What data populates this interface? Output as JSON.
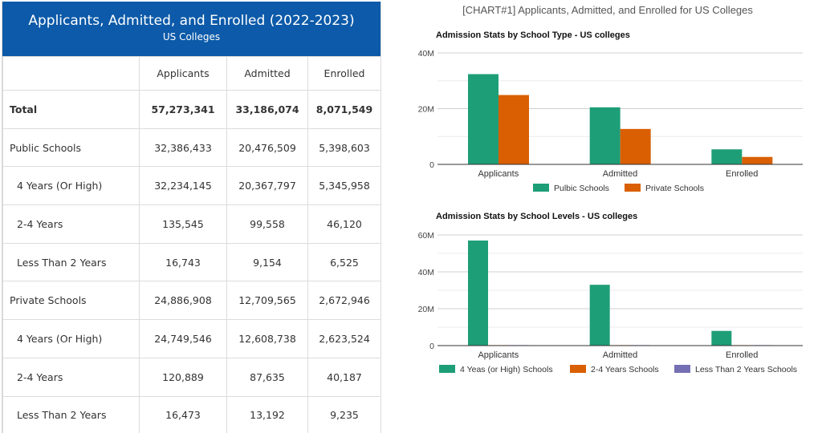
{
  "table": {
    "title": "Applicants, Admitted, and Enrolled (2022-2023)",
    "subtitle": "US Colleges",
    "columns": [
      "",
      "Applicants",
      "Admitted",
      "Enrolled"
    ],
    "rows": [
      {
        "label": "Total",
        "values": [
          "57,273,341",
          "33,186,074",
          "8,071,549"
        ],
        "bold": true,
        "indent": false
      },
      {
        "label": "Public Schools",
        "values": [
          "32,386,433",
          "20,476,509",
          "5,398,603"
        ],
        "bold": false,
        "indent": false
      },
      {
        "label": "4 Years (Or High)",
        "values": [
          "32,234,145",
          "20,367,797",
          "5,345,958"
        ],
        "bold": false,
        "indent": true
      },
      {
        "label": "2-4 Years",
        "values": [
          "135,545",
          "99,558",
          "46,120"
        ],
        "bold": false,
        "indent": true
      },
      {
        "label": "Less Than 2 Years",
        "values": [
          "16,743",
          "9,154",
          "6,525"
        ],
        "bold": false,
        "indent": true
      },
      {
        "label": "Private Schools",
        "values": [
          "24,886,908",
          "12,709,565",
          "2,672,946"
        ],
        "bold": false,
        "indent": false
      },
      {
        "label": "4 Years (Or High)",
        "values": [
          "24,749,546",
          "12,608,738",
          "2,623,524"
        ],
        "bold": false,
        "indent": true
      },
      {
        "label": "2-4 Years",
        "values": [
          "120,889",
          "87,635",
          "40,187"
        ],
        "bold": false,
        "indent": true
      },
      {
        "label": "Less Than 2 Years",
        "values": [
          "16,473",
          "13,192",
          "9,235"
        ],
        "bold": false,
        "indent": true
      }
    ]
  },
  "charts_heading": "[CHART#1] Applicants, Admitted, and Enrolled for US Colleges",
  "chart_data": [
    {
      "type": "bar",
      "title": "Admission Stats by School Type - US colleges",
      "categories": [
        "Applicants",
        "Admitted",
        "Enrolled"
      ],
      "series": [
        {
          "name": "Pulbic Schools",
          "color": "#1e9e77",
          "values": [
            32386433,
            20476509,
            5398603
          ]
        },
        {
          "name": "Private Schools",
          "color": "#d95f02",
          "values": [
            24886908,
            12709565,
            2672946
          ]
        }
      ],
      "ylim": [
        0,
        40000000
      ],
      "yticks": [
        0,
        20000000,
        40000000
      ],
      "ytick_labels": [
        "0",
        "20M",
        "40M"
      ],
      "grid": true,
      "legend": "bottom"
    },
    {
      "type": "bar",
      "title": "Admission Stats by School Levels - US colleges",
      "categories": [
        "Applicants",
        "Admitted",
        "Enrolled"
      ],
      "series": [
        {
          "name": "4 Yeas (or High) Schools",
          "color": "#1e9e77",
          "values": [
            56983691,
            32976535,
            7969482
          ]
        },
        {
          "name": "2-4 Years Schools",
          "color": "#d95f02",
          "values": [
            256434,
            187193,
            86307
          ]
        },
        {
          "name": "Less Than 2 Years Schools",
          "color": "#7570b3",
          "values": [
            33216,
            22346,
            15760
          ]
        }
      ],
      "ylim": [
        0,
        60000000
      ],
      "yticks": [
        0,
        20000000,
        40000000,
        60000000
      ],
      "ytick_labels": [
        "0",
        "20M",
        "40M",
        "60M"
      ],
      "grid": true,
      "legend": "bottom"
    }
  ]
}
